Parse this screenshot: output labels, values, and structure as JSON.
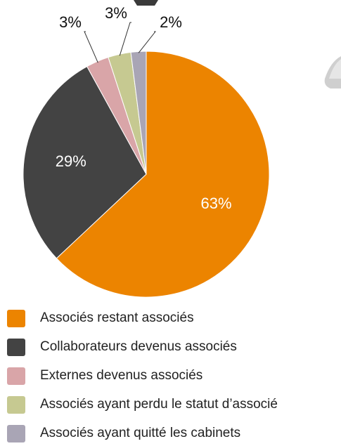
{
  "chart_data": {
    "type": "pie",
    "categories": [
      "Associés restant associés",
      "Collaborateurs devenus associés",
      "Externes devenus associés",
      "Associés ayant perdu le statut d’associé",
      "Associés ayant quitté les cabinets"
    ],
    "values": [
      63,
      29,
      3,
      3,
      2
    ],
    "value_labels": [
      "63%",
      "29%",
      "3%",
      "3%",
      "2%"
    ],
    "colors": [
      "#ec8400",
      "#434343",
      "#d9a5a8",
      "#c6c991",
      "#a9a5b5"
    ]
  }
}
